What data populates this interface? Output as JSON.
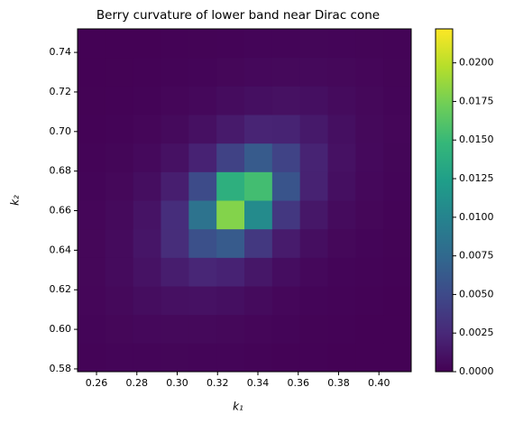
{
  "chart_data": {
    "type": "heatmap",
    "title": "Berry curvature of lower band near Dirac cone",
    "xlabel": "k₁",
    "ylabel": "k₂",
    "colormap": "viridis",
    "xlim": [
      0.2506,
      0.416
    ],
    "ylim": [
      0.5786,
      0.7519
    ],
    "xticks": [
      0.26,
      0.28,
      {
        "value": 0.3,
        "label": "0.30"
      },
      0.32,
      0.34,
      0.36,
      0.38,
      {
        "value": 0.4,
        "label": "0.40"
      }
    ],
    "yticks": [
      0.58,
      {
        "value": 0.6,
        "label": "0.60"
      },
      0.62,
      0.64,
      0.66,
      0.68,
      {
        "value": 0.7,
        "label": "0.70"
      },
      0.72,
      0.74
    ],
    "clim": [
      0,
      0.0222
    ],
    "cticks": [
      {
        "value": 0,
        "label": "0.0000"
      },
      {
        "value": 0.0025,
        "label": "0.0025"
      },
      {
        "value": 0.005,
        "label": "0.0050"
      },
      {
        "value": 0.0075,
        "label": "0.0075"
      },
      {
        "value": 0.01,
        "label": "0.0100"
      },
      {
        "value": 0.0125,
        "label": "0.0125"
      },
      {
        "value": 0.015,
        "label": "0.0150"
      },
      {
        "value": 0.0175,
        "label": "0.0175"
      },
      {
        "value": 0.02,
        "label": "0.0200"
      }
    ],
    "z": [
      [
        0.0002,
        0.00025,
        0.00028,
        0.00029,
        0.00028,
        0.00024,
        0.00019,
        0.00015,
        0.00011,
        8e-05,
        6e-05,
        5e-05
      ],
      [
        0.00026,
        0.00036,
        0.00045,
        0.00051,
        0.0005,
        0.00043,
        0.00033,
        0.00024,
        0.00017,
        0.00012,
        9e-05,
        7e-05
      ],
      [
        0.00033,
        0.0005,
        0.00073,
        0.00095,
        0.00101,
        0.00087,
        0.00062,
        0.00041,
        0.00027,
        0.00018,
        0.00012,
        9e-05
      ],
      [
        0.00036,
        0.00062,
        0.00107,
        0.00178,
        0.00234,
        0.00211,
        0.00137,
        0.00079,
        0.00046,
        0.00028,
        0.00018,
        0.00012
      ],
      [
        0.00035,
        0.00064,
        0.00129,
        0.00281,
        0.00553,
        0.00635,
        0.00365,
        0.00167,
        0.00081,
        0.00043,
        0.00025,
        0.00016
      ],
      [
        0.00031,
        0.00056,
        0.00116,
        0.00287,
        0.0084,
        0.018,
        0.0107,
        0.00362,
        0.0014,
        0.00065,
        0.00035,
        0.00021
      ],
      [
        0.00024,
        0.00042,
        0.00082,
        0.00186,
        0.00507,
        0.014,
        0.0154,
        0.00581,
        0.00208,
        0.00089,
        0.00045,
        0.00026
      ],
      [
        0.00018,
        0.00029,
        0.00052,
        0.001,
        0.00211,
        0.00441,
        0.00635,
        0.00445,
        0.00213,
        0.001,
        0.00052,
        0.0003
      ],
      [
        0.00013,
        0.0002,
        0.00032,
        0.00054,
        0.00093,
        0.00157,
        0.00219,
        0.00215,
        0.0015,
        0.00088,
        0.00051,
        0.00031
      ],
      [
        0.0001,
        0.00014,
        0.0002,
        0.00031,
        0.00047,
        0.00068,
        0.00091,
        0.00099,
        0.00087,
        0.00063,
        0.00043,
        0.00028
      ],
      [
        7e-05,
        0.0001,
        0.00013,
        0.00019,
        0.00026,
        0.00035,
        0.00045,
        0.0005,
        0.00049,
        0.00042,
        0.00032,
        0.00023
      ],
      [
        5e-05,
        7e-05,
        9e-05,
        0.00012,
        0.00016,
        0.0002,
        0.00025,
        0.00028,
        0.00029,
        0.00027,
        0.00023,
        0.00018
      ]
    ]
  }
}
